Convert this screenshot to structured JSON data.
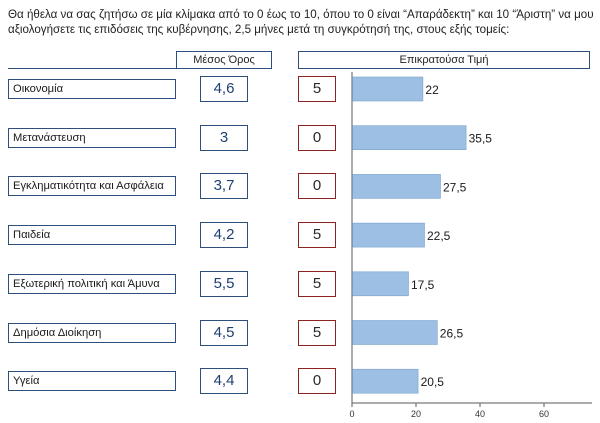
{
  "question": "Θα ήθελα να σας ζητήσω σε μία κλίμακα από το 0 έως το 10, όπου το 0 είναι “Απαράδεκτη” και 10 “Άριστη” να μου αξιολογήσετε τις επιδόσεις της κυβέρνησης, 2,5 μήνες μετά τη συγκρότησή της, στους εξής τομείς:",
  "headers": {
    "mean": "Μέσος Όρος",
    "mode": "Επικρατούσα Τιμή"
  },
  "rows": [
    {
      "category": "Οικονομία",
      "mean": "4,6",
      "mode": "5"
    },
    {
      "category": "Μετανάστευση",
      "mean": "3",
      "mode": "0"
    },
    {
      "category": "Εγκληματικότητα και Ασφάλεια",
      "mean": "3,7",
      "mode": "0"
    },
    {
      "category": "Παιδεία",
      "mean": "4,2",
      "mode": "5"
    },
    {
      "category": "Εξωτερική πολιτική και Άμυνα",
      "mean": "5,5",
      "mode": "5"
    },
    {
      "category": "Δημόσια Διοίκηση",
      "mean": "4,5",
      "mode": "5"
    },
    {
      "category": "Υγεία",
      "mean": "4,4",
      "mode": "0"
    }
  ],
  "chart_data": {
    "type": "bar",
    "orientation": "horizontal",
    "categories": [
      "Οικονομία",
      "Μετανάστευση",
      "Εγκληματικότητα και Ασφάλεια",
      "Παιδεία",
      "Εξωτερική πολιτική και Άμυνα",
      "Δημόσια Διοίκηση",
      "Υγεία"
    ],
    "values": [
      22,
      35.5,
      27.5,
      22.5,
      17.5,
      26.5,
      20.5
    ],
    "value_labels": [
      "22",
      "35,5",
      "27,5",
      "22,5",
      "17,5",
      "26,5",
      "20,5"
    ],
    "xlim": [
      0,
      75
    ],
    "xticks": [
      0,
      20,
      40,
      60
    ],
    "xtick_labels": [
      "0",
      "20",
      "40",
      "60"
    ],
    "grid": false,
    "colors": {
      "bar": "#9dbfe3",
      "bar_edge": "#7aa3cf",
      "axis": "#5a5a5a",
      "box_border": "#2d4f7c",
      "mode_border": "#8b2323"
    }
  }
}
